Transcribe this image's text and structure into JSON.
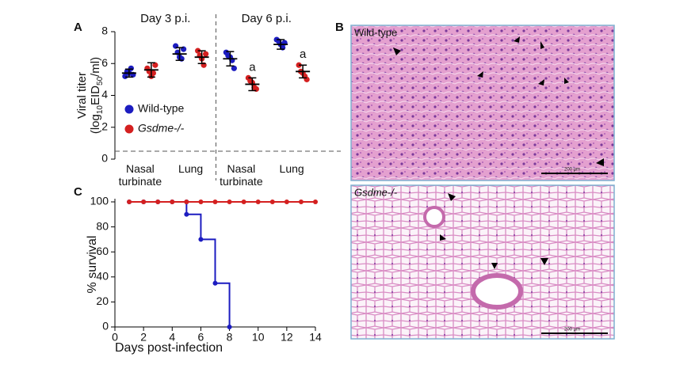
{
  "panel_labels": [
    "A",
    "B",
    "C"
  ],
  "chart_data": [
    {
      "type": "dot",
      "group_labels": [
        "Day 3 p.i.",
        "Day 6 p.i."
      ],
      "categories": [
        "Nasal turbinate",
        "Lung",
        "Nasal turbinate",
        "Lung"
      ],
      "y_label": [
        "Viral titer",
        "(log",
        "10",
        "EID",
        "50",
        "/ml)"
      ],
      "ylim": [
        0,
        8
      ],
      "yticks": [
        0,
        2,
        4,
        6,
        8
      ],
      "detection_limit": 0.5,
      "series": [
        {
          "name": "Wild-type",
          "color": "#1c1cc0",
          "values": [
            [
              5.2,
              5.5,
              5.4,
              5.7,
              5.3
            ],
            [
              7.1,
              6.7,
              6.4,
              6.3,
              6.9
            ],
            [
              6.7,
              6.5,
              6.4,
              6.2,
              5.7
            ],
            [
              7.5,
              7.4,
              7.2,
              7.0,
              7.3
            ]
          ],
          "means": [
            5.4,
            6.6,
            6.3,
            7.2
          ],
          "errors": [
            0.25,
            0.4,
            0.45,
            0.3
          ]
        },
        {
          "name": "Gsdme-/-",
          "color": "#d42020",
          "values": [
            [
              5.7,
              5.5,
              5.2,
              5.4,
              5.9
            ],
            [
              6.8,
              6.5,
              6.3,
              5.9,
              6.6
            ],
            [
              5.1,
              4.9,
              4.8,
              4.5,
              4.4
            ],
            [
              5.9,
              5.5,
              5.4,
              5.2,
              5.0
            ]
          ],
          "means": [
            5.6,
            6.4,
            4.7,
            5.5
          ],
          "errors": [
            0.45,
            0.4,
            0.4,
            0.4
          ],
          "annotations": [
            null,
            null,
            "a",
            "a"
          ]
        }
      ]
    },
    {
      "type": "survival",
      "x_label": "Days post-infection",
      "y_label": "% survival",
      "xlim": [
        0,
        14
      ],
      "xticks": [
        0,
        2,
        4,
        6,
        8,
        10,
        12,
        14
      ],
      "ylim": [
        0,
        100
      ],
      "yticks": [
        0,
        20,
        40,
        60,
        80,
        100
      ],
      "series": [
        {
          "color": "#1c1cc0",
          "x": [
            1,
            2,
            3,
            4,
            5,
            5,
            6,
            7,
            8
          ],
          "values": [
            100,
            100,
            100,
            100,
            100,
            90,
            70,
            35,
            0
          ]
        },
        {
          "color": "#d42020",
          "x": [
            1,
            2,
            3,
            4,
            5,
            6,
            7,
            8,
            9,
            10,
            11,
            12,
            13,
            14
          ],
          "values": [
            100,
            100,
            100,
            100,
            100,
            100,
            100,
            100,
            100,
            100,
            100,
            100,
            100,
            100
          ]
        }
      ]
    }
  ],
  "images": [
    {
      "label": "Wild-type",
      "scale_bar": "200 μm"
    },
    {
      "label": "Gsdme-/-",
      "scale_bar": "200 μm"
    }
  ]
}
